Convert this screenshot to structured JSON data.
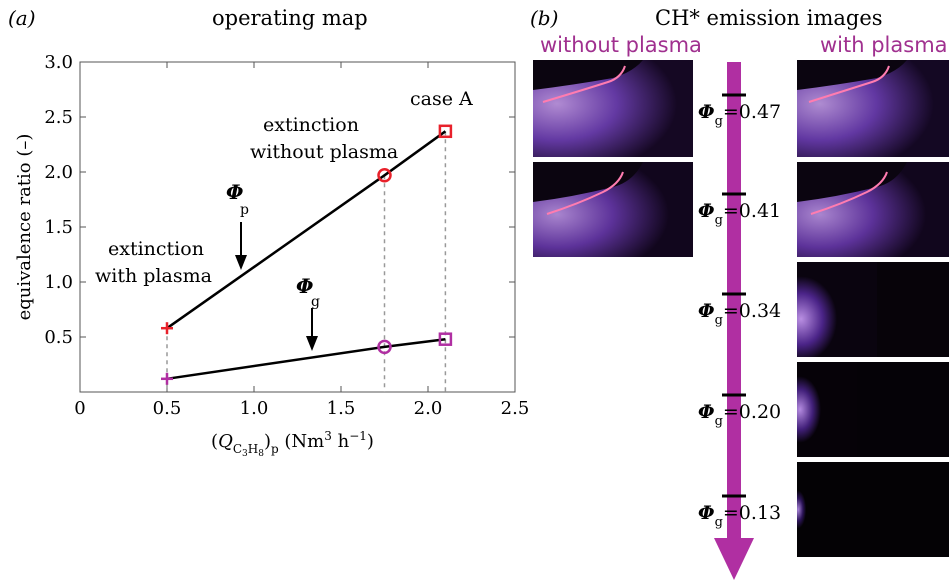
{
  "panel_a": {
    "tag": "(a)",
    "title": "operating map",
    "annotations": {
      "case_a": "case A",
      "ext_without_1": "extinction",
      "ext_without_2": "without plasma",
      "ext_with_1": "extinction",
      "ext_with_2": "with plasma",
      "phi_p": "Φ",
      "phi_p_sub": "p",
      "phi_g": "Φ",
      "phi_g_sub": "g"
    }
  },
  "panel_b": {
    "tag": "(b)",
    "title": "CH* emission images",
    "left_heading": "without plasma",
    "right_heading": "with plasma",
    "phi_symbol": "Φ",
    "phi_sub": "g",
    "levels": [
      "0.47",
      "0.41",
      "0.34",
      "0.20",
      "0.13"
    ]
  },
  "colors": {
    "magenta": "#b02fa2",
    "red": "#e8212b",
    "dashed": "#888888"
  },
  "chart_data": {
    "type": "line",
    "title": "operating map",
    "xlabel": "(Q_C3H8)_p (Nm^3 h^-1)",
    "ylabel": "equivalence ratio (–)",
    "xlim": [
      0,
      2.5
    ],
    "ylim": [
      0,
      3.0
    ],
    "x_ticks": [
      "0",
      "0.5",
      "1.0",
      "1.5",
      "2.0",
      "2.5"
    ],
    "y_ticks": [
      "0.5",
      "1.0",
      "1.5",
      "2.0",
      "2.5",
      "3.0"
    ],
    "series": [
      {
        "name": "Φp",
        "x": [
          0.5,
          1.75,
          2.1
        ],
        "y": [
          0.58,
          1.97,
          2.37
        ]
      },
      {
        "name": "Φg",
        "x": [
          0.5,
          1.75,
          2.1
        ],
        "y": [
          0.12,
          0.41,
          0.48
        ]
      }
    ],
    "grid": false
  }
}
